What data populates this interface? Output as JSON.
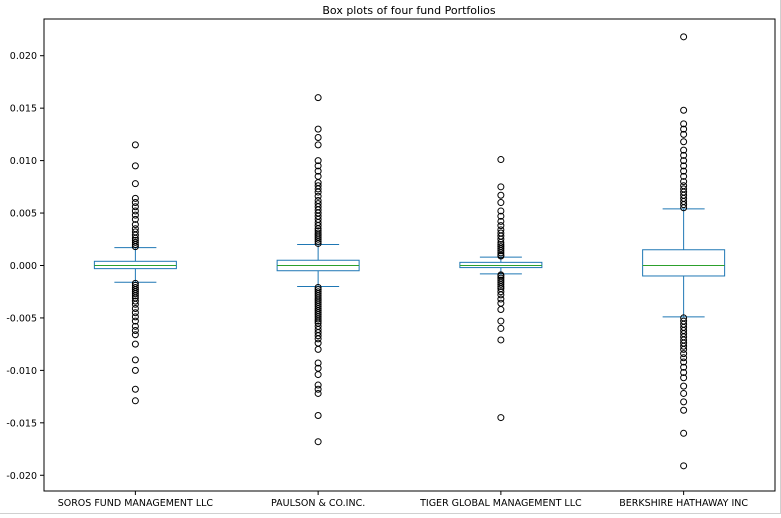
{
  "chart_data": {
    "type": "box",
    "title": "Box plots of four fund Portfolios",
    "xlabel": "",
    "ylabel": "",
    "ylim": [
      -0.0215,
      0.0235
    ],
    "yticks": [
      -0.02,
      -0.015,
      -0.01,
      -0.005,
      0.0,
      0.005,
      0.01,
      0.015,
      0.02
    ],
    "ytick_labels": [
      "-0.020",
      "-0.015",
      "-0.010",
      "-0.005",
      "0.000",
      "0.005",
      "0.010",
      "0.015",
      "0.020"
    ],
    "grid": false,
    "legend": "none",
    "colors": {
      "box": "#1f77b4",
      "median": "#2ca02c",
      "whisker": "#1f77b4",
      "flier": "#000000"
    },
    "categories": [
      "SOROS FUND MANAGEMENT LLC",
      "PAULSON & CO.INC.",
      "TIGER GLOBAL MANAGEMENT LLC",
      "BERKSHIRE HATHAWAY INC"
    ],
    "boxes": [
      {
        "name": "SOROS FUND MANAGEMENT LLC",
        "whisker_low": -0.0016,
        "q1": -0.0003,
        "median": 0.0,
        "q3": 0.0004,
        "whisker_high": 0.0017,
        "fliers_high": [
          0.0018,
          0.002,
          0.0022,
          0.0024,
          0.0026,
          0.0029,
          0.0032,
          0.0035,
          0.0039,
          0.0044,
          0.0048,
          0.0052,
          0.0056,
          0.006,
          0.0064,
          0.0078,
          0.0095,
          0.0115
        ],
        "fliers_low": [
          -0.0017,
          -0.0019,
          -0.0021,
          -0.0023,
          -0.0025,
          -0.0027,
          -0.0029,
          -0.0031,
          -0.0034,
          -0.0037,
          -0.0041,
          -0.0045,
          -0.0049,
          -0.0053,
          -0.0058,
          -0.0062,
          -0.0066,
          -0.0075,
          -0.009,
          -0.01,
          -0.0118,
          -0.0129
        ]
      },
      {
        "name": "PAULSON & CO.INC.",
        "whisker_low": -0.002,
        "q1": -0.0005,
        "median": 0.0,
        "q3": 0.0005,
        "whisker_high": 0.002,
        "fliers_high": [
          0.0021,
          0.0023,
          0.0025,
          0.0027,
          0.0029,
          0.0031,
          0.0033,
          0.0035,
          0.0038,
          0.0041,
          0.0044,
          0.0047,
          0.005,
          0.0053,
          0.0056,
          0.0059,
          0.0062,
          0.0066,
          0.007,
          0.0073,
          0.0076,
          0.0079,
          0.0085,
          0.009,
          0.0095,
          0.01,
          0.0115,
          0.0122,
          0.013,
          0.016
        ],
        "fliers_low": [
          -0.0021,
          -0.0023,
          -0.0025,
          -0.0027,
          -0.0029,
          -0.0031,
          -0.0033,
          -0.0035,
          -0.0037,
          -0.0039,
          -0.0041,
          -0.0043,
          -0.0045,
          -0.0047,
          -0.0049,
          -0.0051,
          -0.0053,
          -0.0055,
          -0.0058,
          -0.0061,
          -0.0064,
          -0.0067,
          -0.007,
          -0.0074,
          -0.008,
          -0.0093,
          -0.0098,
          -0.0104,
          -0.0114,
          -0.0118,
          -0.0122,
          -0.0143,
          -0.0168
        ]
      },
      {
        "name": "TIGER GLOBAL MANAGEMENT LLC",
        "whisker_low": -0.0008,
        "q1": -0.0002,
        "median": 0.0,
        "q3": 0.0003,
        "whisker_high": 0.0008,
        "fliers_high": [
          0.0009,
          0.001,
          0.0012,
          0.0014,
          0.0016,
          0.0018,
          0.002,
          0.0022,
          0.0025,
          0.0028,
          0.0031,
          0.0034,
          0.0038,
          0.0042,
          0.0047,
          0.0052,
          0.006,
          0.0067,
          0.0075,
          0.0101
        ],
        "fliers_low": [
          -0.0009,
          -0.001,
          -0.0012,
          -0.0014,
          -0.0016,
          -0.0018,
          -0.002,
          -0.0022,
          -0.0025,
          -0.0028,
          -0.0032,
          -0.0036,
          -0.0042,
          -0.0053,
          -0.006,
          -0.0071,
          -0.0145
        ]
      },
      {
        "name": "BERKSHIRE HATHAWAY INC",
        "whisker_low": -0.0049,
        "q1": -0.001,
        "median": 0.0,
        "q3": 0.0015,
        "whisker_high": 0.0054,
        "fliers_high": [
          0.0055,
          0.0058,
          0.0061,
          0.0064,
          0.0067,
          0.007,
          0.0073,
          0.0076,
          0.008,
          0.0085,
          0.009,
          0.0095,
          0.01,
          0.0105,
          0.011,
          0.0118,
          0.0125,
          0.013,
          0.0135,
          0.0148,
          0.0218
        ],
        "fliers_low": [
          -0.005,
          -0.0053,
          -0.0056,
          -0.0059,
          -0.0062,
          -0.0065,
          -0.0068,
          -0.0071,
          -0.0074,
          -0.0077,
          -0.008,
          -0.0084,
          -0.0088,
          -0.0092,
          -0.0097,
          -0.0102,
          -0.0107,
          -0.0115,
          -0.0122,
          -0.013,
          -0.0138,
          -0.016,
          -0.0191
        ]
      }
    ]
  }
}
